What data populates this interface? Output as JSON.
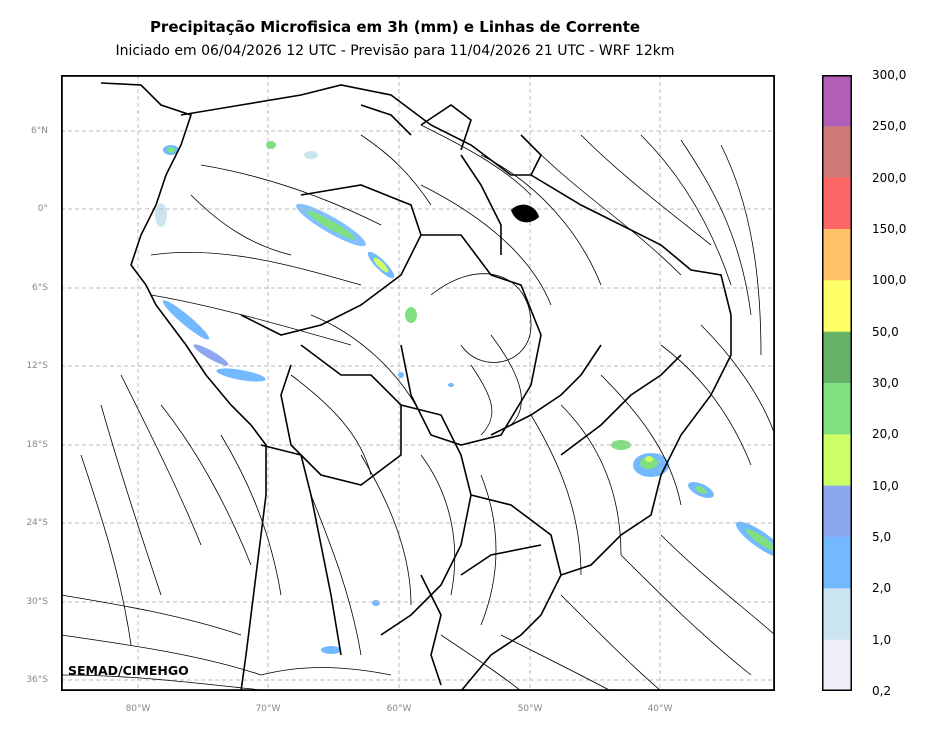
{
  "title": "Precipitação Microfisica em 3h (mm) e Linhas de Corrente",
  "subtitle": "Iniciado em 06/04/2026 12 UTC - Previsão para 11/04/2026 21 UTC - WRF 12km",
  "credit": "SEMAD/CIMEHGO",
  "lat_labels": [
    "6°N",
    "0°",
    "6°S",
    "12°S",
    "18°S",
    "24°S",
    "30°S",
    "36°S"
  ],
  "lon_labels": [
    "80°W",
    "70°W",
    "60°W",
    "50°W",
    "40°W"
  ],
  "colorbar": {
    "labels": [
      "300,0",
      "250,0",
      "200,0",
      "150,0",
      "100,0",
      "50,0",
      "30,0",
      "20,0",
      "10,0",
      "5,0",
      "2,0",
      "1,0",
      "0,2"
    ],
    "colors": [
      "#b25fb9",
      "#d07a78",
      "#ff6666",
      "#ffc266",
      "#ffff66",
      "#66b266",
      "#80e080",
      "#ccff66",
      "#8ca6f0",
      "#73b9ff",
      "#cbe5ee",
      "#eeeefa"
    ]
  },
  "map_layers": {
    "precip_colors": [
      "#eeeefa",
      "#cbe5ee",
      "#73b9ff",
      "#8ca6f0",
      "#ccff66",
      "#80e080",
      "#66b266"
    ],
    "streamline_color": "#000000",
    "boundary_color": "#000000",
    "grid": true
  }
}
